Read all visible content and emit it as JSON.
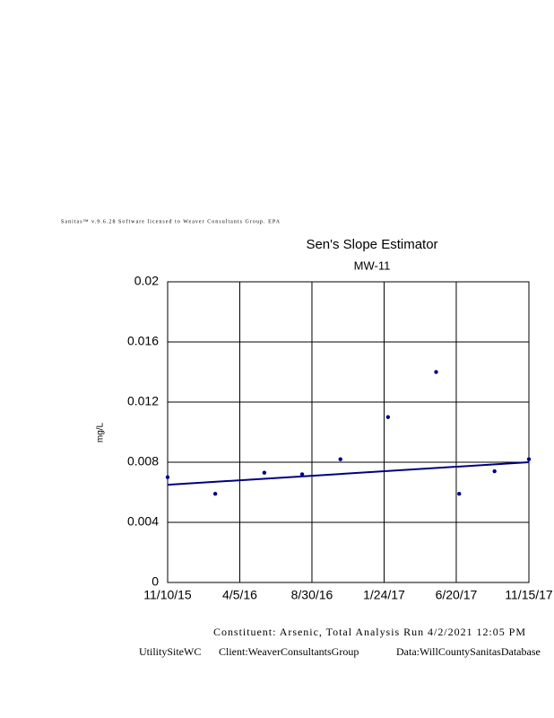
{
  "header_note": "Sanitas™ v.9.6.28 Software licensed to Weaver Consultants Group. EPA",
  "footer": {
    "line1": "Constituent: Arsenic, Total Analysis Run 4/2/2021 12:05 PM",
    "site": "UtilitySiteWC",
    "client": "Client:WeaverConsultantsGroup",
    "data": "Data:WillCountySanitasDatabase"
  },
  "chart_data": {
    "type": "scatter",
    "title": "Sen's Slope Estimator",
    "subtitle": "MW-11",
    "y_label": "mg/L",
    "x": [
      "11/10/15",
      "2/15/16",
      "5/25/16",
      "8/10/16",
      "10/27/16",
      "2/1/17",
      "5/10/17",
      "6/26/17",
      "9/6/17",
      "11/15/17"
    ],
    "series": [
      {
        "color": "#000080",
        "values": [
          0.007,
          0.0059,
          0.0073,
          0.0072,
          0.0082,
          0.011,
          0.014,
          0.0059,
          0.0074,
          0.0082
        ]
      }
    ],
    "trend": {
      "color": "#000080",
      "x": [
        "11/10/15",
        "11/15/17"
      ],
      "values": [
        0.0065,
        0.008
      ]
    },
    "xlim": [
      "11/10/15",
      "11/15/17"
    ],
    "xticks": [
      "11/10/15",
      "4/5/16",
      "8/30/16",
      "1/24/17",
      "6/20/17",
      "11/15/17"
    ],
    "ylim": [
      0,
      0.02
    ],
    "yticks": [
      0,
      0.004,
      0.008,
      0.012,
      0.016,
      0.02
    ],
    "grid": true
  }
}
